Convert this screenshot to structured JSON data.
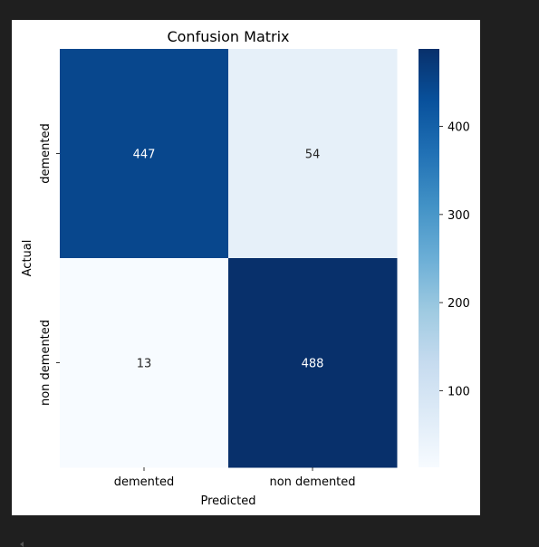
{
  "chart_data": {
    "type": "heatmap",
    "title": "Confusion Matrix",
    "xlabel": "Predicted",
    "ylabel": "Actual",
    "x_categories": [
      "demented",
      "non demented"
    ],
    "y_categories": [
      "demented",
      "non demented"
    ],
    "values": [
      [
        447,
        54
      ],
      [
        13,
        488
      ]
    ],
    "colormap": "Blues",
    "colorbar": {
      "vmin": 13,
      "vmax": 488,
      "ticks": [
        100,
        200,
        300,
        400
      ]
    }
  }
}
